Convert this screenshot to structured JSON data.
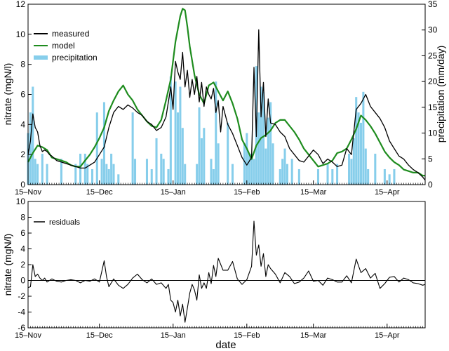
{
  "chart_data": [
    {
      "type": "line",
      "panel": "top",
      "xlabel": "",
      "ylabel": "nitrate (mgN/l)",
      "y2label": "precipitation (mm/day)",
      "x_ticks": [
        "15–Nov",
        "15–Dec",
        "15–Jan",
        "15–Feb",
        "15–Mar",
        "15–Apr"
      ],
      "x_tick_days": [
        0,
        30,
        61,
        92,
        120,
        151
      ],
      "x_range_days": [
        0,
        167
      ],
      "ylim": [
        0,
        12
      ],
      "y_ticks": [
        "0",
        "2",
        "4",
        "6",
        "8",
        "10",
        "12"
      ],
      "y2lim": [
        0,
        35
      ],
      "y2_ticks": [
        "0",
        "5",
        "10",
        "15",
        "20",
        "25",
        "30",
        "35"
      ],
      "legend_position": "top-left",
      "legend": [
        "measured",
        "model",
        "precipitation"
      ],
      "colors": {
        "measured": "#000000",
        "model": "#1e8c1e",
        "precipitation": "#87ceeb"
      },
      "series": [
        {
          "name": "measured",
          "x_days": [
            0,
            1,
            2,
            3,
            4,
            5,
            6,
            7,
            8,
            9,
            10,
            12,
            14,
            16,
            18,
            20,
            22,
            24,
            26,
            28,
            30,
            32,
            34,
            36,
            38,
            40,
            42,
            44,
            46,
            48,
            50,
            52,
            54,
            56,
            58,
            60,
            61,
            62,
            63,
            64,
            65,
            66,
            67,
            68,
            69,
            70,
            71,
            72,
            73,
            74,
            75,
            76,
            77,
            78,
            79,
            80,
            81,
            82,
            84,
            86,
            88,
            90,
            92,
            94,
            95,
            96,
            97,
            98,
            99,
            100,
            101,
            102,
            104,
            106,
            108,
            110,
            112,
            114,
            116,
            118,
            120,
            122,
            124,
            126,
            128,
            130,
            132,
            134,
            136,
            138,
            140,
            142,
            144,
            146,
            148,
            150,
            152,
            154,
            156,
            158,
            160,
            162,
            164,
            166,
            167
          ],
          "y": [
            2.0,
            2.9,
            4.7,
            3.8,
            3.5,
            2.6,
            2.2,
            2.3,
            2.2,
            2.0,
            1.9,
            1.6,
            1.5,
            1.4,
            1.3,
            1.2,
            1.1,
            1.1,
            1.3,
            1.5,
            2.0,
            2.5,
            3.8,
            4.8,
            5.2,
            5.0,
            5.3,
            5.1,
            4.8,
            4.6,
            4.2,
            4.0,
            3.6,
            3.8,
            4.5,
            6.5,
            5.0,
            8.2,
            7.5,
            7.0,
            8.8,
            6.5,
            7.6,
            5.8,
            7.0,
            6.0,
            7.2,
            5.5,
            6.8,
            5.2,
            6.5,
            6.0,
            5.7,
            6.4,
            4.8,
            5.6,
            3.5,
            5.2,
            4.0,
            3.4,
            2.6,
            1.8,
            1.3,
            1.8,
            7.8,
            3.2,
            10.3,
            4.5,
            6.8,
            3.2,
            5.7,
            4.1,
            4.0,
            3.5,
            3.2,
            2.4,
            2.0,
            1.6,
            1.5,
            1.9,
            2.3,
            2.0,
            1.4,
            1.7,
            1.5,
            1.2,
            1.3,
            2.4,
            2.0,
            5.0,
            5.4,
            6.0,
            5.2,
            4.8,
            4.4,
            3.8,
            2.9,
            2.4,
            1.9,
            1.7,
            1.3,
            1.0,
            0.8,
            0.5,
            0.3
          ]
        },
        {
          "name": "model",
          "x_days": [
            0,
            2,
            4,
            6,
            8,
            10,
            12,
            14,
            16,
            18,
            20,
            22,
            24,
            26,
            28,
            30,
            32,
            34,
            36,
            38,
            40,
            42,
            44,
            46,
            48,
            50,
            52,
            54,
            56,
            58,
            60,
            62,
            64,
            65,
            66,
            67,
            68,
            70,
            72,
            74,
            76,
            78,
            80,
            82,
            84,
            86,
            88,
            90,
            92,
            94,
            96,
            98,
            100,
            102,
            104,
            106,
            108,
            110,
            112,
            114,
            116,
            118,
            120,
            122,
            124,
            126,
            128,
            130,
            132,
            134,
            136,
            138,
            140,
            142,
            144,
            146,
            148,
            150,
            152,
            154,
            156,
            158,
            160,
            162,
            164,
            166,
            167
          ],
          "y": [
            1.5,
            2.1,
            2.6,
            2.5,
            2.3,
            1.8,
            1.7,
            1.6,
            1.5,
            1.3,
            1.2,
            1.2,
            1.6,
            2.0,
            2.5,
            3.1,
            3.8,
            4.9,
            5.6,
            6.2,
            6.6,
            6.0,
            5.6,
            5.0,
            4.6,
            4.2,
            3.9,
            3.8,
            4.3,
            5.6,
            7.0,
            9.5,
            11.2,
            11.7,
            11.6,
            10.5,
            9.2,
            7.3,
            6.0,
            5.4,
            6.6,
            6.8,
            6.2,
            5.6,
            6.2,
            5.4,
            4.4,
            3.0,
            2.4,
            1.7,
            2.6,
            3.1,
            3.3,
            3.6,
            4.1,
            4.3,
            4.3,
            3.9,
            3.5,
            3.0,
            2.4,
            2.0,
            1.6,
            1.2,
            1.3,
            1.4,
            1.6,
            2.1,
            2.2,
            2.4,
            3.0,
            3.7,
            4.6,
            4.3,
            3.9,
            3.4,
            2.8,
            2.2,
            1.8,
            1.5,
            1.3,
            1.0,
            0.9,
            0.8,
            0.8,
            0.6,
            0.6
          ]
        },
        {
          "name": "precipitation",
          "bar_days": [
            0,
            1,
            2,
            3,
            4,
            6,
            8,
            14,
            20,
            22,
            24,
            25,
            27,
            29,
            31,
            32,
            33,
            34,
            35,
            36,
            38,
            44,
            45,
            50,
            52,
            54,
            56,
            57,
            59,
            60,
            62,
            63,
            64,
            65,
            66,
            71,
            72,
            73,
            74,
            77,
            78,
            79,
            80,
            84,
            86,
            91,
            92,
            93,
            94,
            95,
            96,
            97,
            98,
            99,
            100,
            101,
            102,
            103,
            106,
            107,
            108,
            109,
            111,
            114,
            122,
            126,
            128,
            130,
            135,
            136,
            137,
            138,
            139,
            140,
            141,
            142,
            143,
            146,
            150,
            152,
            154
          ],
          "values_mm": [
            10,
            14,
            19,
            5,
            4,
            6,
            4,
            5,
            4,
            6,
            6,
            4,
            3,
            14,
            5,
            16,
            4,
            3,
            6,
            4,
            2,
            14,
            5,
            5,
            3,
            9,
            6,
            5,
            3,
            21,
            20,
            14,
            19,
            11,
            4,
            4,
            15,
            9,
            11,
            5,
            3,
            20,
            8,
            12,
            4,
            8,
            10,
            6,
            6,
            5,
            23,
            14,
            19,
            18,
            7,
            13,
            16,
            8,
            3,
            5,
            7,
            4,
            5,
            3,
            3,
            4,
            3,
            4,
            6,
            5,
            9,
            17,
            14,
            12,
            18,
            7,
            3,
            6,
            3,
            2,
            3
          ]
        }
      ]
    },
    {
      "type": "line",
      "panel": "bottom",
      "xlabel": "date",
      "ylabel": "nitrate (mgN/l)",
      "x_ticks": [
        "15–Nov",
        "15–Dec",
        "15–Jan",
        "15–Feb",
        "15–Mar",
        "15–Apr"
      ],
      "x_tick_days": [
        0,
        30,
        61,
        92,
        120,
        151
      ],
      "x_range_days": [
        0,
        167
      ],
      "ylim": [
        -6,
        10
      ],
      "y_ticks": [
        "-6",
        "-4",
        "-2",
        "0",
        "2",
        "4",
        "6",
        "8",
        "10"
      ],
      "legend_position": "top-left",
      "legend": [
        "residuals"
      ],
      "series": [
        {
          "name": "residuals",
          "x_days": [
            0,
            1,
            2,
            3,
            4,
            5,
            6,
            7,
            8,
            10,
            12,
            14,
            16,
            18,
            20,
            22,
            24,
            26,
            28,
            30,
            32,
            33,
            34,
            36,
            38,
            40,
            42,
            44,
            46,
            48,
            50,
            52,
            54,
            56,
            58,
            59,
            60,
            61,
            62,
            63,
            64,
            65,
            66,
            67,
            68,
            69,
            70,
            71,
            72,
            73,
            74,
            75,
            76,
            77,
            78,
            79,
            80,
            82,
            84,
            86,
            88,
            90,
            92,
            94,
            95,
            96,
            97,
            98,
            99,
            100,
            101,
            102,
            104,
            106,
            108,
            110,
            112,
            114,
            116,
            118,
            120,
            122,
            124,
            126,
            128,
            130,
            132,
            134,
            136,
            138,
            140,
            142,
            144,
            146,
            148,
            150,
            152,
            154,
            156,
            158,
            160,
            162,
            164,
            166,
            167
          ],
          "y": [
            -0.9,
            -0.8,
            2.0,
            0.5,
            0.8,
            0.3,
            0.0,
            0.3,
            -0.2,
            0.2,
            -0.1,
            -0.2,
            0.0,
            0.1,
            0.0,
            -0.3,
            0.0,
            -0.1,
            0.2,
            -0.2,
            2.5,
            0.5,
            -0.8,
            0.2,
            -0.6,
            -1.0,
            -0.5,
            0.3,
            0.8,
            0.1,
            -0.3,
            0.2,
            -0.5,
            -0.3,
            -1.0,
            -0.5,
            -2.5,
            -2.8,
            -4.0,
            -2.5,
            -4.5,
            -3.0,
            -5.3,
            -3.5,
            -1.6,
            -0.5,
            -1.2,
            -2.5,
            0.7,
            -1.0,
            -0.3,
            -1.0,
            1.0,
            -0.4,
            1.9,
            0.5,
            2.8,
            1.3,
            1.3,
            2.4,
            0.2,
            -0.5,
            0.1,
            1.8,
            7.5,
            3.2,
            4.5,
            1.8,
            3.4,
            0.5,
            2.0,
            1.5,
            0.8,
            -0.3,
            1.0,
            0.5,
            -0.4,
            -0.2,
            0.3,
            1.2,
            -0.1,
            0.0,
            -0.6,
            0.3,
            0.1,
            -0.2,
            -0.2,
            0.6,
            -0.3,
            2.7,
            1.0,
            1.5,
            0.3,
            0.9,
            -1.0,
            -0.4,
            0.4,
            0.5,
            -0.2,
            0.3,
            0.1,
            -0.3,
            -0.4,
            -0.6,
            -0.5
          ]
        }
      ]
    }
  ]
}
